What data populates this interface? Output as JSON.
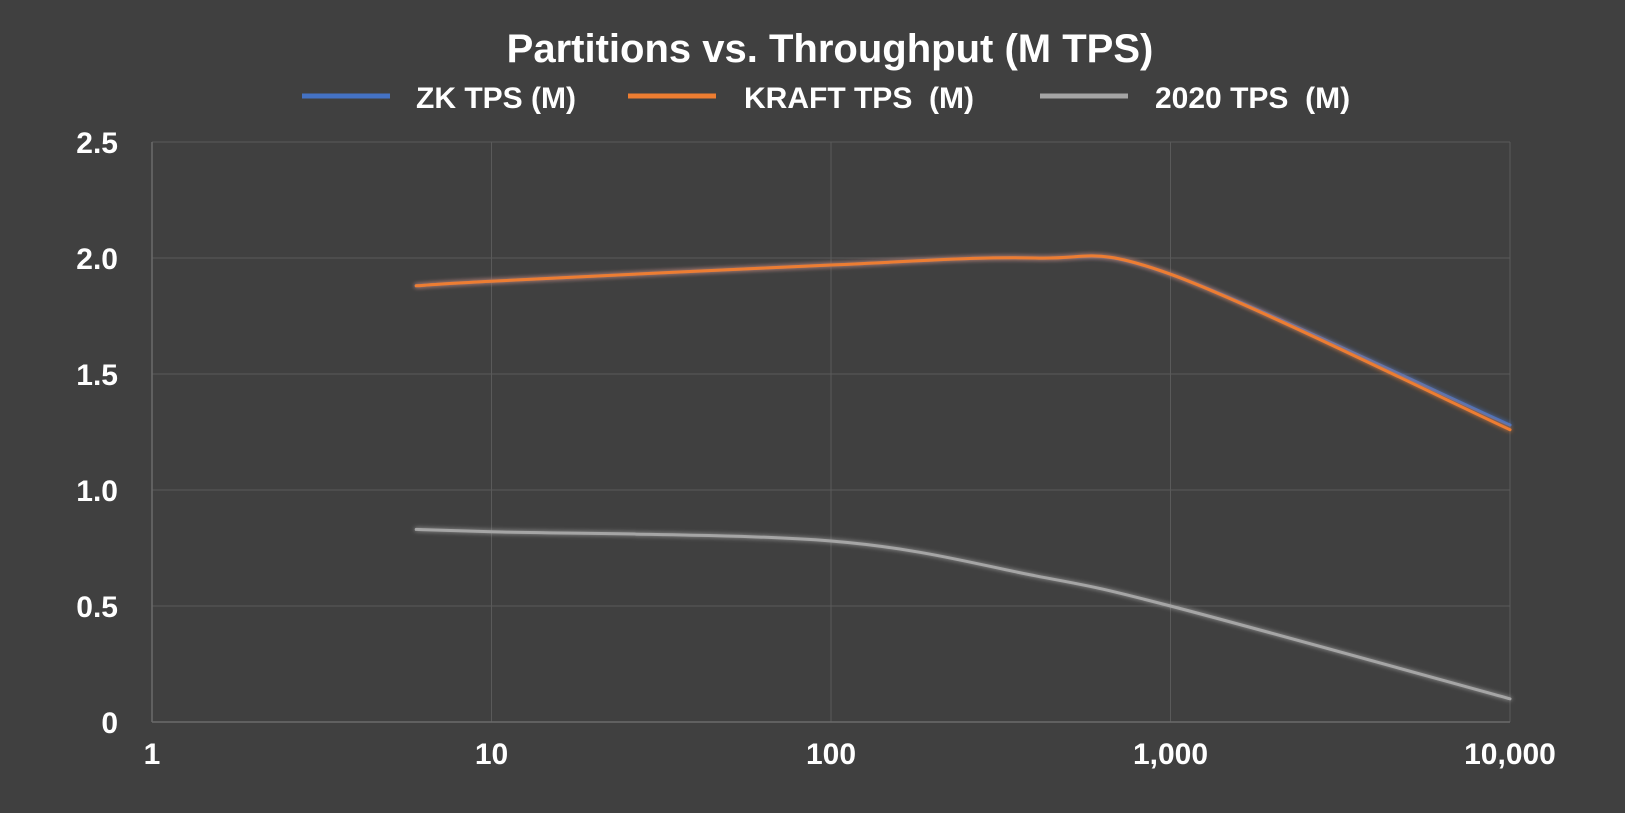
{
  "chart_data": {
    "type": "line",
    "title": "Partitions vs. Throughput (M TPS)",
    "xlabel": "",
    "ylabel": "",
    "x_scale": "log",
    "xlim": [
      1,
      10000
    ],
    "ylim": [
      0,
      2.5
    ],
    "grid": true,
    "legend_position": "top",
    "x_ticks": [
      1,
      10,
      100,
      1000,
      10000
    ],
    "x_tick_labels": [
      "1",
      "10",
      "100",
      "1,000",
      "10,000"
    ],
    "y_ticks": [
      0,
      0.5,
      1.0,
      1.5,
      2.0,
      2.5
    ],
    "y_tick_labels": [
      "0",
      "0.5",
      "1.0",
      "1.5",
      "2.0",
      "2.5"
    ],
    "x": [
      6,
      10,
      100,
      400,
      1000,
      10000
    ],
    "series": [
      {
        "name": "ZK TPS (M)",
        "color": "#4472c4",
        "values": [
          1.88,
          1.9,
          1.97,
          2.0,
          1.93,
          1.28
        ]
      },
      {
        "name": "KRAFT TPS  (M)",
        "color": "#ed7d31",
        "values": [
          1.88,
          1.9,
          1.97,
          2.0,
          1.93,
          1.26
        ]
      },
      {
        "name": "2020 TPS  (M)",
        "color": "#a5a5a5",
        "values": [
          0.83,
          0.82,
          0.78,
          0.63,
          0.5,
          0.1
        ]
      }
    ]
  },
  "colors": {
    "background": "#404040",
    "grid": "#5a5a5a",
    "text": "#ffffff"
  }
}
